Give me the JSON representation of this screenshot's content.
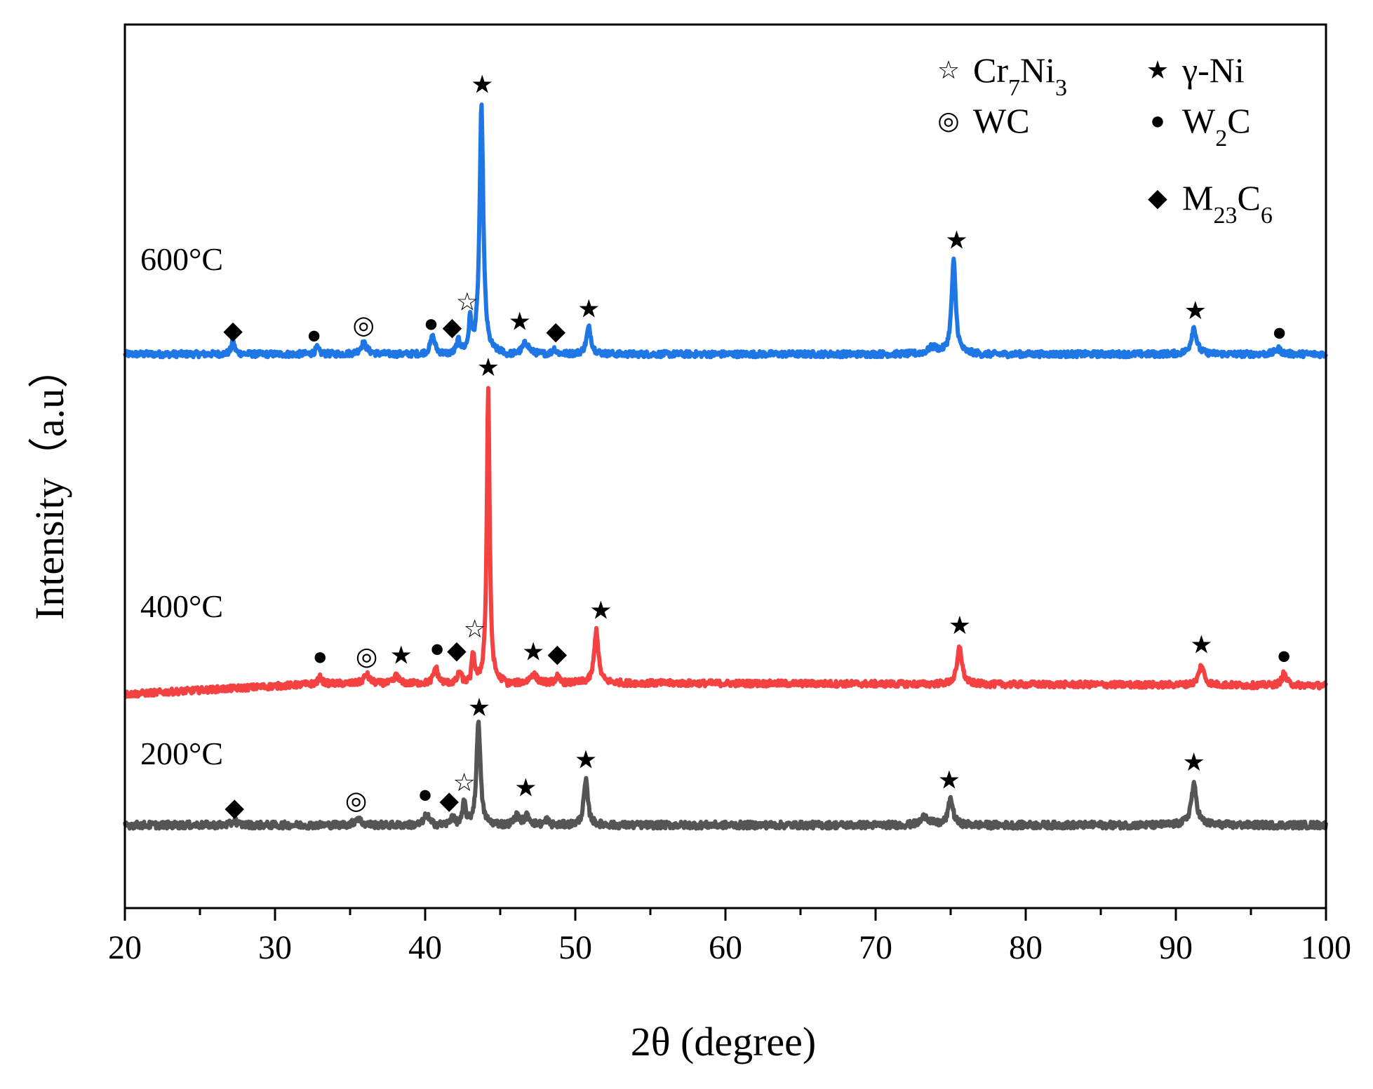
{
  "chart_data": {
    "type": "line",
    "title": "",
    "xlabel": "2θ (degree)",
    "ylabel": "Intensity（a.u）",
    "xlim": [
      20,
      100
    ],
    "xticks": [
      20,
      30,
      40,
      50,
      60,
      70,
      80,
      90,
      100
    ],
    "ylim": [
      0,
      100
    ],
    "grid": false,
    "legend_position": "top-right",
    "phases": [
      {
        "id": "cr7ni3",
        "symbol": "☆",
        "label_main": "Cr",
        "sub1": "7",
        "label_mid": "Ni",
        "sub2": "3"
      },
      {
        "id": "gni",
        "symbol": "★",
        "label_main": "γ-Ni",
        "sub1": "",
        "label_mid": "",
        "sub2": ""
      },
      {
        "id": "wc",
        "symbol": "◎",
        "label_main": "WC",
        "sub1": "",
        "label_mid": "",
        "sub2": ""
      },
      {
        "id": "w2c",
        "symbol": "●",
        "label_main": "W",
        "sub1": "2",
        "label_mid": "C",
        "sub2": ""
      },
      {
        "id": "m23c6",
        "symbol": "◆",
        "label_main": "M",
        "sub1": "23",
        "label_mid": "C",
        "sub2": "6"
      }
    ],
    "series": [
      {
        "name": "600°C",
        "color": "#1f77e6",
        "baseline": 62.7,
        "noise": 0.35,
        "peaks": [
          {
            "x": 27.2,
            "h": 1.4,
            "w": 0.18
          },
          {
            "x": 32.8,
            "h": 0.7,
            "w": 0.2
          },
          {
            "x": 35.9,
            "h": 1.2,
            "w": 0.35
          },
          {
            "x": 40.5,
            "h": 2.0,
            "w": 0.25
          },
          {
            "x": 42.2,
            "h": 1.5,
            "w": 0.2
          },
          {
            "x": 43.0,
            "h": 3.5,
            "w": 0.15
          },
          {
            "x": 43.75,
            "h": 28.0,
            "w": 0.2
          },
          {
            "x": 46.7,
            "h": 1.3,
            "w": 0.35
          },
          {
            "x": 48.6,
            "h": 0.6,
            "w": 0.2
          },
          {
            "x": 50.9,
            "h": 3.0,
            "w": 0.25
          },
          {
            "x": 73.8,
            "h": 0.7,
            "w": 0.6
          },
          {
            "x": 75.2,
            "h": 10.5,
            "w": 0.22
          },
          {
            "x": 91.2,
            "h": 3.0,
            "w": 0.28
          },
          {
            "x": 96.8,
            "h": 0.6,
            "w": 0.3
          }
        ],
        "markers": [
          {
            "x": 27.2,
            "y": 65.4,
            "phase": "m23c6"
          },
          {
            "x": 32.6,
            "y": 64.9,
            "phase": "w2c"
          },
          {
            "x": 35.9,
            "y": 66.0,
            "phase": "wc"
          },
          {
            "x": 40.4,
            "y": 66.2,
            "phase": "w2c"
          },
          {
            "x": 41.8,
            "y": 65.8,
            "phase": "m23c6"
          },
          {
            "x": 42.8,
            "y": 68.6,
            "phase": "cr7ni3"
          },
          {
            "x": 43.8,
            "y": 93.2,
            "phase": "gni"
          },
          {
            "x": 46.3,
            "y": 66.4,
            "phase": "gni"
          },
          {
            "x": 48.7,
            "y": 65.3,
            "phase": "m23c6"
          },
          {
            "x": 50.9,
            "y": 67.8,
            "phase": "gni"
          },
          {
            "x": 75.4,
            "y": 75.6,
            "phase": "gni"
          },
          {
            "x": 91.3,
            "y": 67.6,
            "phase": "gni"
          },
          {
            "x": 96.9,
            "y": 65.2,
            "phase": "w2c"
          }
        ]
      },
      {
        "name": "400°C",
        "color": "#f44242",
        "baseline": 25.2,
        "noise": 0.35,
        "trend": [
          {
            "x": 20,
            "dy": -1.0
          },
          {
            "x": 33,
            "dy": 0.2
          },
          {
            "x": 50,
            "dy": 0.3
          },
          {
            "x": 100,
            "dy": 0
          }
        ],
        "peaks": [
          {
            "x": 33.0,
            "h": 0.7,
            "w": 0.2
          },
          {
            "x": 36.1,
            "h": 1.0,
            "w": 0.3
          },
          {
            "x": 38.1,
            "h": 1.0,
            "w": 0.2
          },
          {
            "x": 40.7,
            "h": 1.8,
            "w": 0.22
          },
          {
            "x": 42.3,
            "h": 1.3,
            "w": 0.2
          },
          {
            "x": 43.2,
            "h": 3.2,
            "w": 0.15
          },
          {
            "x": 44.2,
            "h": 33.5,
            "w": 0.15
          },
          {
            "x": 47.2,
            "h": 1.0,
            "w": 0.35
          },
          {
            "x": 48.8,
            "h": 0.7,
            "w": 0.2
          },
          {
            "x": 51.4,
            "h": 6.0,
            "w": 0.22
          },
          {
            "x": 75.6,
            "h": 4.2,
            "w": 0.25
          },
          {
            "x": 91.7,
            "h": 2.2,
            "w": 0.28
          },
          {
            "x": 97.2,
            "h": 1.3,
            "w": 0.25
          }
        ],
        "markers": [
          {
            "x": 33.0,
            "y": 28.5,
            "phase": "w2c"
          },
          {
            "x": 36.1,
            "y": 28.5,
            "phase": "wc"
          },
          {
            "x": 38.4,
            "y": 28.6,
            "phase": "gni"
          },
          {
            "x": 40.8,
            "y": 29.4,
            "phase": "w2c"
          },
          {
            "x": 42.1,
            "y": 29.2,
            "phase": "m23c6"
          },
          {
            "x": 43.3,
            "y": 31.6,
            "phase": "cr7ni3"
          },
          {
            "x": 44.2,
            "y": 61.2,
            "phase": "gni"
          },
          {
            "x": 47.2,
            "y": 29.0,
            "phase": "gni"
          },
          {
            "x": 48.8,
            "y": 28.8,
            "phase": "m23c6"
          },
          {
            "x": 51.7,
            "y": 33.7,
            "phase": "gni"
          },
          {
            "x": 75.6,
            "y": 32.0,
            "phase": "gni"
          },
          {
            "x": 91.7,
            "y": 29.8,
            "phase": "gni"
          },
          {
            "x": 97.2,
            "y": 28.6,
            "phase": "w2c"
          }
        ]
      },
      {
        "name": "200°C",
        "color": "#555555",
        "baseline": 9.4,
        "noise": 0.4,
        "peaks": [
          {
            "x": 27.3,
            "h": 0.6,
            "w": 0.2
          },
          {
            "x": 35.5,
            "h": 0.8,
            "w": 0.3
          },
          {
            "x": 40.1,
            "h": 1.2,
            "w": 0.25
          },
          {
            "x": 41.8,
            "h": 1.0,
            "w": 0.2
          },
          {
            "x": 42.6,
            "h": 2.5,
            "w": 0.15
          },
          {
            "x": 43.55,
            "h": 12.0,
            "w": 0.2
          },
          {
            "x": 46.1,
            "h": 1.0,
            "w": 0.3
          },
          {
            "x": 46.8,
            "h": 1.0,
            "w": 0.3
          },
          {
            "x": 48.1,
            "h": 0.6,
            "w": 0.2
          },
          {
            "x": 50.7,
            "h": 5.0,
            "w": 0.22
          },
          {
            "x": 73.3,
            "h": 1.0,
            "w": 0.4
          },
          {
            "x": 75.0,
            "h": 3.0,
            "w": 0.25
          },
          {
            "x": 91.2,
            "h": 4.5,
            "w": 0.3
          }
        ],
        "markers": [
          {
            "x": 27.3,
            "y": 11.4,
            "phase": "m23c6"
          },
          {
            "x": 35.4,
            "y": 12.2,
            "phase": "wc"
          },
          {
            "x": 40.0,
            "y": 12.9,
            "phase": "w2c"
          },
          {
            "x": 41.6,
            "y": 12.2,
            "phase": "m23c6"
          },
          {
            "x": 42.6,
            "y": 14.2,
            "phase": "cr7ni3"
          },
          {
            "x": 43.6,
            "y": 22.7,
            "phase": "gni"
          },
          {
            "x": 46.7,
            "y": 13.6,
            "phase": "gni"
          },
          {
            "x": 50.7,
            "y": 16.8,
            "phase": "gni"
          },
          {
            "x": 74.9,
            "y": 14.5,
            "phase": "gni"
          },
          {
            "x": 91.2,
            "y": 16.5,
            "phase": "gni"
          }
        ]
      }
    ]
  }
}
